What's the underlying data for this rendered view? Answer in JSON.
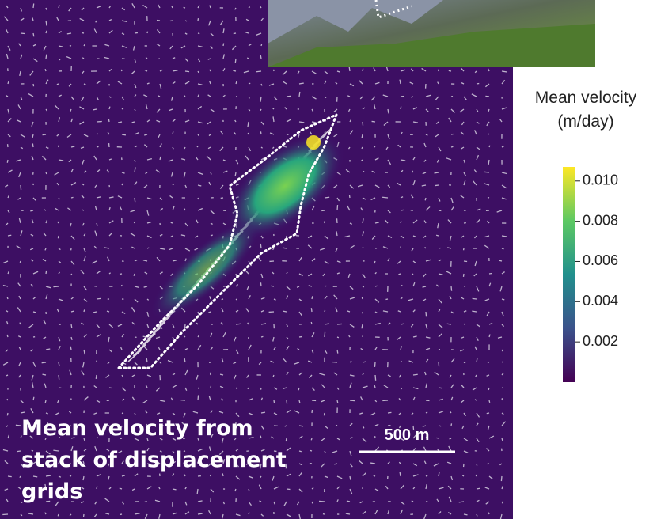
{
  "figure": {
    "colorbar": {
      "title": [
        "Mean velocity",
        "(m/day)"
      ],
      "range": [
        0,
        0.0107
      ],
      "ticks": [
        {
          "value": 0.002,
          "label": "0.002"
        },
        {
          "value": 0.004,
          "label": "0.004"
        },
        {
          "value": 0.006,
          "label": "0.006"
        },
        {
          "value": 0.008,
          "label": "0.008"
        },
        {
          "value": 0.01,
          "label": "0.010"
        }
      ]
    },
    "caption": [
      "Mean velocity from",
      "stack of displacement",
      "grids"
    ],
    "scale_bar": "500 m"
  }
}
